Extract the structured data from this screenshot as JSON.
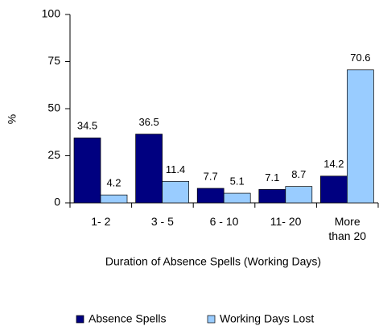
{
  "chart_data": {
    "type": "bar",
    "y_label": "%",
    "x_label": "Duration of Absence Spells (Working Days)",
    "categories": [
      "1- 2",
      "3 - 5",
      "6 - 10",
      "11- 20",
      "More than 20"
    ],
    "series": [
      {
        "name": "Absence Spells",
        "color": "#000080",
        "values": [
          34.5,
          36.5,
          7.7,
          7.1,
          14.2
        ]
      },
      {
        "name": "Working Days Lost",
        "color": "#99ccff",
        "values": [
          4.2,
          11.4,
          5.1,
          8.7,
          70.6
        ]
      }
    ],
    "ylim": [
      0,
      100
    ],
    "yticks": [
      0,
      25,
      50,
      75,
      100
    ],
    "grid": false,
    "legend": "bottom"
  }
}
